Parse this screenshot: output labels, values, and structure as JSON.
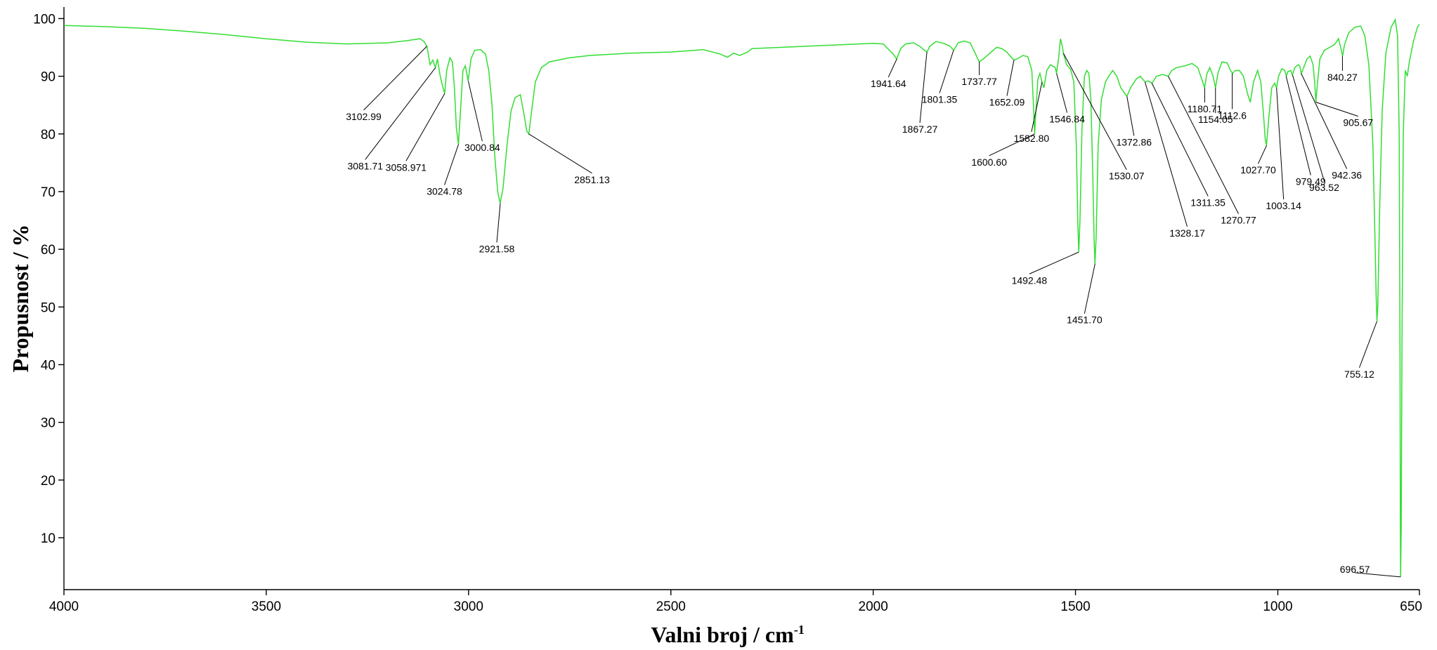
{
  "chart_data": {
    "type": "line",
    "xlabel": "Valni broj / cm",
    "xlabel_sup": "-1",
    "ylabel": "Propusnost / %",
    "xlim": [
      4000,
      650
    ],
    "ylim": [
      1,
      102
    ],
    "x_ticks": [
      {
        "value": 4000,
        "label": "4000"
      },
      {
        "value": 3500,
        "label": "3500"
      },
      {
        "value": 3000,
        "label": "3000"
      },
      {
        "value": 2500,
        "label": "2500"
      },
      {
        "value": 2000,
        "label": "2000"
      },
      {
        "value": 1500,
        "label": "1500"
      },
      {
        "value": 1000,
        "label": "1000"
      },
      {
        "value": 650,
        "label": "650"
      }
    ],
    "y_ticks": [
      {
        "value": 10,
        "label": "10"
      },
      {
        "value": 20,
        "label": "20"
      },
      {
        "value": 30,
        "label": "30"
      },
      {
        "value": 40,
        "label": "40"
      },
      {
        "value": 50,
        "label": "50"
      },
      {
        "value": 60,
        "label": "60"
      },
      {
        "value": 70,
        "label": "70"
      },
      {
        "value": 80,
        "label": "80"
      },
      {
        "value": 90,
        "label": "90"
      },
      {
        "value": 100,
        "label": "100"
      }
    ],
    "series": [
      {
        "color": "#33dd33",
        "points": [
          [
            4000,
            98.8
          ],
          [
            3900,
            98.6
          ],
          [
            3800,
            98.3
          ],
          [
            3700,
            97.8
          ],
          [
            3600,
            97.2
          ],
          [
            3500,
            96.5
          ],
          [
            3400,
            95.9
          ],
          [
            3300,
            95.6
          ],
          [
            3200,
            95.8
          ],
          [
            3150,
            96.2
          ],
          [
            3120,
            96.5
          ],
          [
            3110,
            96.0
          ],
          [
            3103,
            95.2
          ],
          [
            3095,
            92.0
          ],
          [
            3088,
            92.8
          ],
          [
            3082,
            91.5
          ],
          [
            3077,
            93.0
          ],
          [
            3070,
            90.0
          ],
          [
            3065,
            88.5
          ],
          [
            3059,
            87.0
          ],
          [
            3054,
            91.0
          ],
          [
            3046,
            93.2
          ],
          [
            3040,
            92.5
          ],
          [
            3035,
            88.0
          ],
          [
            3030,
            81.0
          ],
          [
            3025,
            78.2
          ],
          [
            3020,
            84.0
          ],
          [
            3014,
            91.0
          ],
          [
            3008,
            91.8
          ],
          [
            3001,
            89.2
          ],
          [
            2994,
            93.0
          ],
          [
            2985,
            94.5
          ],
          [
            2970,
            94.6
          ],
          [
            2958,
            93.8
          ],
          [
            2950,
            91.0
          ],
          [
            2942,
            85.0
          ],
          [
            2935,
            76.0
          ],
          [
            2928,
            70.0
          ],
          [
            2922,
            68.0
          ],
          [
            2915,
            70.5
          ],
          [
            2905,
            78.0
          ],
          [
            2895,
            84.0
          ],
          [
            2885,
            86.3
          ],
          [
            2872,
            86.8
          ],
          [
            2862,
            83.0
          ],
          [
            2856,
            80.5
          ],
          [
            2851,
            80.0
          ],
          [
            2845,
            83.5
          ],
          [
            2835,
            89.0
          ],
          [
            2820,
            91.5
          ],
          [
            2800,
            92.5
          ],
          [
            2750,
            93.2
          ],
          [
            2700,
            93.6
          ],
          [
            2600,
            94.0
          ],
          [
            2500,
            94.2
          ],
          [
            2420,
            94.6
          ],
          [
            2380,
            93.9
          ],
          [
            2360,
            93.3
          ],
          [
            2345,
            94.0
          ],
          [
            2330,
            93.6
          ],
          [
            2310,
            94.2
          ],
          [
            2300,
            94.8
          ],
          [
            2200,
            95.1
          ],
          [
            2100,
            95.4
          ],
          [
            2000,
            95.7
          ],
          [
            1975,
            95.6
          ],
          [
            1960,
            94.5
          ],
          [
            1950,
            93.8
          ],
          [
            1942,
            93.0
          ],
          [
            1932,
            94.8
          ],
          [
            1920,
            95.6
          ],
          [
            1900,
            95.8
          ],
          [
            1885,
            95.2
          ],
          [
            1875,
            94.6
          ],
          [
            1867,
            94.2
          ],
          [
            1860,
            95.2
          ],
          [
            1845,
            96.0
          ],
          [
            1825,
            95.7
          ],
          [
            1810,
            95.2
          ],
          [
            1801,
            94.5
          ],
          [
            1790,
            95.8
          ],
          [
            1775,
            96.1
          ],
          [
            1760,
            95.8
          ],
          [
            1748,
            94.0
          ],
          [
            1738,
            92.5
          ],
          [
            1728,
            93.0
          ],
          [
            1715,
            93.8
          ],
          [
            1695,
            95.0
          ],
          [
            1682,
            94.8
          ],
          [
            1670,
            94.2
          ],
          [
            1660,
            93.4
          ],
          [
            1652,
            92.8
          ],
          [
            1645,
            93.0
          ],
          [
            1630,
            93.6
          ],
          [
            1618,
            93.4
          ],
          [
            1608,
            91.0
          ],
          [
            1604,
            85.0
          ],
          [
            1601,
            80.0
          ],
          [
            1597,
            85.0
          ],
          [
            1593,
            89.5
          ],
          [
            1588,
            90.5
          ],
          [
            1583,
            89.0
          ],
          [
            1578,
            88.0
          ],
          [
            1571,
            91.0
          ],
          [
            1562,
            92.0
          ],
          [
            1550,
            91.5
          ],
          [
            1547,
            90.5
          ],
          [
            1542,
            93.0
          ],
          [
            1537,
            96.5
          ],
          [
            1532,
            95.0
          ],
          [
            1530,
            94.0
          ],
          [
            1522,
            92.0
          ],
          [
            1512,
            91.2
          ],
          [
            1504,
            89.0
          ],
          [
            1498,
            78.0
          ],
          [
            1494,
            64.0
          ],
          [
            1492,
            59.5
          ],
          [
            1489,
            65.0
          ],
          [
            1484,
            81.0
          ],
          [
            1478,
            90.0
          ],
          [
            1472,
            91.0
          ],
          [
            1467,
            90.5
          ],
          [
            1462,
            86.0
          ],
          [
            1457,
            72.0
          ],
          [
            1454,
            62.0
          ],
          [
            1452,
            57.5
          ],
          [
            1449,
            62.0
          ],
          [
            1444,
            78.0
          ],
          [
            1436,
            86.0
          ],
          [
            1426,
            89.0
          ],
          [
            1418,
            90.0
          ],
          [
            1408,
            91.0
          ],
          [
            1398,
            90.0
          ],
          [
            1388,
            88.0
          ],
          [
            1378,
            87.0
          ],
          [
            1373,
            86.5
          ],
          [
            1364,
            88.0
          ],
          [
            1350,
            89.5
          ],
          [
            1340,
            90.0
          ],
          [
            1328,
            89.0
          ],
          [
            1320,
            89.2
          ],
          [
            1311,
            88.8
          ],
          [
            1300,
            90.0
          ],
          [
            1285,
            90.3
          ],
          [
            1271,
            90.0
          ],
          [
            1262,
            91.0
          ],
          [
            1250,
            91.5
          ],
          [
            1230,
            91.8
          ],
          [
            1212,
            92.2
          ],
          [
            1198,
            91.5
          ],
          [
            1188,
            89.5
          ],
          [
            1181,
            88.0
          ],
          [
            1175,
            90.5
          ],
          [
            1168,
            91.5
          ],
          [
            1160,
            90.0
          ],
          [
            1154,
            88.0
          ],
          [
            1148,
            90.5
          ],
          [
            1138,
            92.5
          ],
          [
            1125,
            92.3
          ],
          [
            1117,
            91.0
          ],
          [
            1112,
            90.5
          ],
          [
            1105,
            91.0
          ],
          [
            1095,
            91.0
          ],
          [
            1085,
            90.0
          ],
          [
            1075,
            87.0
          ],
          [
            1068,
            85.5
          ],
          [
            1060,
            89.0
          ],
          [
            1050,
            91.0
          ],
          [
            1042,
            89.0
          ],
          [
            1035,
            83.0
          ],
          [
            1031,
            79.0
          ],
          [
            1028,
            78.0
          ],
          [
            1022,
            83.0
          ],
          [
            1015,
            88.0
          ],
          [
            1008,
            88.8
          ],
          [
            1003,
            88.0
          ],
          [
            998,
            90.0
          ],
          [
            990,
            91.3
          ],
          [
            983,
            91.0
          ],
          [
            979,
            90.0
          ],
          [
            975,
            90.8
          ],
          [
            968,
            91.0
          ],
          [
            964,
            90.2
          ],
          [
            958,
            91.5
          ],
          [
            950,
            92.0
          ],
          [
            946,
            91.8
          ],
          [
            942,
            90.5
          ],
          [
            936,
            91.5
          ],
          [
            928,
            93.0
          ],
          [
            920,
            93.5
          ],
          [
            913,
            92.0
          ],
          [
            909,
            89.0
          ],
          [
            906,
            85.5
          ],
          [
            903,
            88.0
          ],
          [
            896,
            93.0
          ],
          [
            885,
            94.5
          ],
          [
            872,
            95.0
          ],
          [
            860,
            95.5
          ],
          [
            850,
            96.5
          ],
          [
            843,
            94.5
          ],
          [
            840,
            93.5
          ],
          [
            835,
            95.5
          ],
          [
            825,
            97.5
          ],
          [
            810,
            98.5
          ],
          [
            795,
            98.7
          ],
          [
            785,
            97.0
          ],
          [
            775,
            92.0
          ],
          [
            765,
            78.0
          ],
          [
            760,
            62.0
          ],
          [
            757,
            52.0
          ],
          [
            755,
            47.5
          ],
          [
            753,
            50.0
          ],
          [
            748,
            68.0
          ],
          [
            742,
            84.0
          ],
          [
            733,
            94.0
          ],
          [
            720,
            98.5
          ],
          [
            710,
            99.8
          ],
          [
            704,
            97.0
          ],
          [
            700,
            80.0
          ],
          [
            698,
            40.0
          ],
          [
            697,
            10.0
          ],
          [
            696.6,
            3.2
          ],
          [
            695,
            12.0
          ],
          [
            693,
            45.0
          ],
          [
            690,
            80.0
          ],
          [
            685,
            91.0
          ],
          [
            680,
            90.0
          ],
          [
            675,
            92.5
          ],
          [
            665,
            96.0
          ],
          [
            655,
            98.5
          ],
          [
            650,
            99.0
          ]
        ]
      }
    ],
    "annotations": [
      {
        "text": "3102.99",
        "x": 3102.99,
        "y": 95.2
      },
      {
        "text": "3081.71",
        "x": 3081.71,
        "y": 91.5
      },
      {
        "text": "3058.971",
        "x": 3058.971,
        "y": 87.0
      },
      {
        "text": "3024.78",
        "x": 3024.78,
        "y": 78.2
      },
      {
        "text": "3000.84",
        "x": 3000.84,
        "y": 89.2
      },
      {
        "text": "2921.58",
        "x": 2921.58,
        "y": 68.0
      },
      {
        "text": "2851.13",
        "x": 2851.13,
        "y": 80.0
      },
      {
        "text": "1941.64",
        "x": 1941.64,
        "y": 93.0
      },
      {
        "text": "1867.27",
        "x": 1867.27,
        "y": 94.2
      },
      {
        "text": "1801.35",
        "x": 1801.35,
        "y": 94.5
      },
      {
        "text": "1737.77",
        "x": 1737.77,
        "y": 92.5
      },
      {
        "text": "1652.09",
        "x": 1652.09,
        "y": 92.8
      },
      {
        "text": "1600.60",
        "x": 1600.6,
        "y": 80.0
      },
      {
        "text": "1582.80",
        "x": 1582.8,
        "y": 89.0
      },
      {
        "text": "1546.84",
        "x": 1546.84,
        "y": 90.5
      },
      {
        "text": "1530.07",
        "x": 1530.07,
        "y": 94.0
      },
      {
        "text": "1492.48",
        "x": 1492.48,
        "y": 59.5
      },
      {
        "text": "1451.70",
        "x": 1451.7,
        "y": 57.5
      },
      {
        "text": "1372.86",
        "x": 1372.86,
        "y": 86.5
      },
      {
        "text": "1328.17",
        "x": 1328.17,
        "y": 89.0
      },
      {
        "text": "1311.35",
        "x": 1311.35,
        "y": 88.8
      },
      {
        "text": "1270.77",
        "x": 1270.77,
        "y": 90.0
      },
      {
        "text": "1180.71",
        "x": 1180.71,
        "y": 88.0
      },
      {
        "text": "1154.05",
        "x": 1154.05,
        "y": 88.0
      },
      {
        "text": "1112.6",
        "x": 1112.6,
        "y": 90.5
      },
      {
        "text": "1027.70",
        "x": 1027.7,
        "y": 78.0
      },
      {
        "text": "1003.14",
        "x": 1003.14,
        "y": 88.0
      },
      {
        "text": "979.49",
        "x": 979.49,
        "y": 90.0
      },
      {
        "text": "963.52",
        "x": 963.52,
        "y": 90.2
      },
      {
        "text": "942.36",
        "x": 942.36,
        "y": 90.5
      },
      {
        "text": "905.67",
        "x": 905.67,
        "y": 85.5
      },
      {
        "text": "840.27",
        "x": 840.27,
        "y": 93.5
      },
      {
        "text": "755.12",
        "x": 755.12,
        "y": 47.5
      },
      {
        "text": "696.57",
        "x": 696.57,
        "y": 3.2
      }
    ]
  }
}
